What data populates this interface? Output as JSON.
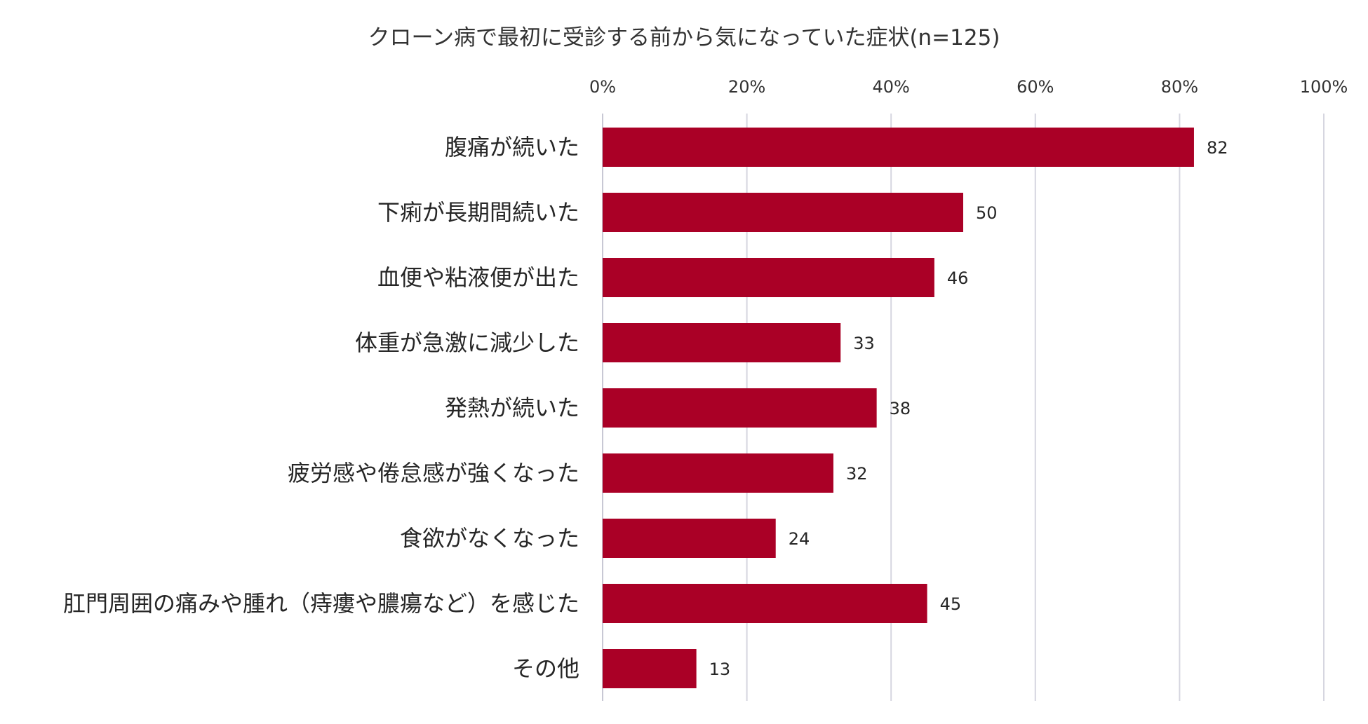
{
  "chart_data": {
    "type": "bar",
    "orientation": "horizontal",
    "title": "クローン病で最初に受診する前から気になっていた症状(n=125)",
    "categories": [
      "腹痛が続いた",
      "下痢が長期間続いた",
      "血便や粘液便が出た",
      "体重が急激に減少した",
      "発熱が続いた",
      "疲労感や倦怠感が強くなった",
      "食欲がなくなった",
      "肛門周囲の痛みや腫れ（痔瘻や膿瘍など）を感じた",
      "その他"
    ],
    "values": [
      82,
      50,
      46,
      33,
      38,
      32,
      24,
      45,
      13
    ],
    "data_labels": [
      "82",
      "50",
      "46",
      "33",
      "38",
      "32",
      "24",
      "45",
      "13"
    ],
    "xlim": [
      0,
      100
    ],
    "x_ticks": [
      0,
      20,
      40,
      60,
      80,
      100
    ],
    "x_tick_labels": [
      "0%",
      "20%",
      "40%",
      "60%",
      "80%",
      "100%"
    ],
    "x_axis_position": "top",
    "grid": true,
    "legend": "none",
    "bar_color": "#AA0026",
    "grid_color": "#D6D6E0"
  }
}
